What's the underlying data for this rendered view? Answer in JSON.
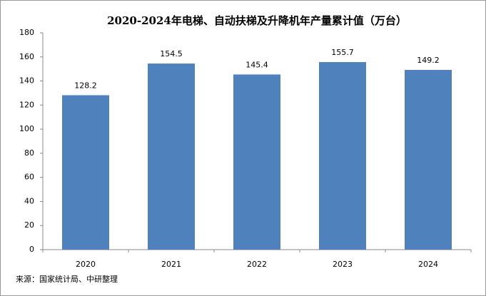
{
  "chart_data": {
    "type": "bar",
    "title": "2020-2024年电梯、自动扶梯及升降机年产量累计值（万台）",
    "categories": [
      "2020",
      "2021",
      "2022",
      "2023",
      "2024"
    ],
    "values": [
      128.2,
      154.5,
      145.4,
      155.7,
      149.2
    ],
    "color": "#4f81bd",
    "ylim": [
      0,
      180
    ],
    "yticks": [
      0,
      20,
      40,
      60,
      80,
      100,
      120,
      140,
      160,
      180
    ],
    "grid": false,
    "source": "来源：国家统计局、中研整理"
  }
}
